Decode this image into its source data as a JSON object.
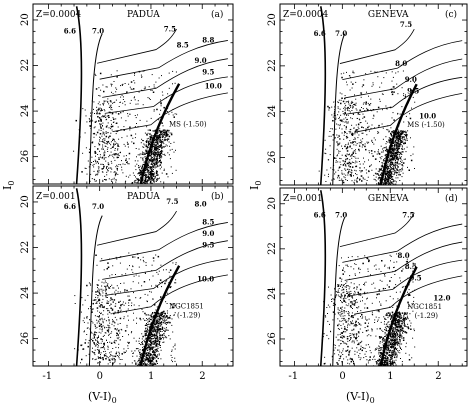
{
  "figure": {
    "ylabel": "I",
    "ylabel_sub": "0",
    "xlabel": "(V-I)",
    "xlabel_sub": "0"
  },
  "chart_data": [
    {
      "type": "scatter",
      "panel": "a",
      "panel_label": "(a)",
      "title_z": "Z=0.0004",
      "title_model": "PADUA",
      "xlim": [
        -1.3,
        2.6
      ],
      "ylim": [
        27.2,
        19.3
      ],
      "xticks": [
        "-1",
        "0",
        "1",
        "2"
      ],
      "yticks": [
        "20",
        "22",
        "24",
        "26"
      ],
      "show_xtick_labels": false,
      "show_ytick_labels": true,
      "isochrone_labels": [
        {
          "text": "6.6",
          "x": -0.7,
          "y": 20.6
        },
        {
          "text": "7.0",
          "x": -0.15,
          "y": 20.6
        },
        {
          "text": "7.5",
          "x": 1.25,
          "y": 20.5
        },
        {
          "text": "8.5",
          "x": 1.5,
          "y": 21.2
        },
        {
          "text": "8.8",
          "x": 2.0,
          "y": 21.0
        },
        {
          "text": "9.0",
          "x": 1.85,
          "y": 21.9
        },
        {
          "text": "9.5",
          "x": 2.0,
          "y": 22.4
        },
        {
          "text": "10.0",
          "x": 2.05,
          "y": 23.0
        }
      ],
      "annotation": "MS (-1.50)",
      "annotation2": ""
    },
    {
      "type": "scatter",
      "panel": "b",
      "panel_label": "(b)",
      "title_z": "Z=0.001",
      "title_model": "PADUA",
      "xlim": [
        -1.3,
        2.6
      ],
      "ylim": [
        27.2,
        19.3
      ],
      "xticks": [
        "-1",
        "0",
        "1",
        "2"
      ],
      "yticks": [
        "20",
        "22",
        "24",
        "26"
      ],
      "show_xtick_labels": true,
      "show_ytick_labels": true,
      "isochrone_labels": [
        {
          "text": "6.6",
          "x": -0.7,
          "y": 20.3
        },
        {
          "text": "7.0",
          "x": -0.15,
          "y": 20.3
        },
        {
          "text": "7.5",
          "x": 1.3,
          "y": 20.1
        },
        {
          "text": "8.0",
          "x": 1.85,
          "y": 20.2
        },
        {
          "text": "8.5",
          "x": 2.0,
          "y": 21.0
        },
        {
          "text": "9.0",
          "x": 2.0,
          "y": 21.5
        },
        {
          "text": "9.5",
          "x": 2.0,
          "y": 22.0
        },
        {
          "text": "10.0",
          "x": 1.9,
          "y": 23.5
        }
      ],
      "annotation": "NGC1851",
      "annotation2": "(-1.29)"
    },
    {
      "type": "scatter",
      "panel": "c",
      "panel_label": "(c)",
      "title_z": "Z=0.0004",
      "title_model": "GENEVA",
      "xlim": [
        -1.3,
        2.6
      ],
      "ylim": [
        27.2,
        19.3
      ],
      "xticks": [
        "-1",
        "0",
        "1",
        "2"
      ],
      "yticks": [
        "20",
        "22",
        "24",
        "26"
      ],
      "show_xtick_labels": false,
      "show_ytick_labels": true,
      "isochrone_labels": [
        {
          "text": "6.6",
          "x": -0.6,
          "y": 20.7
        },
        {
          "text": "7.0",
          "x": -0.15,
          "y": 20.7
        },
        {
          "text": "7.5",
          "x": 1.2,
          "y": 20.3
        },
        {
          "text": "8.0",
          "x": 1.1,
          "y": 22.0
        },
        {
          "text": "9.0",
          "x": 1.3,
          "y": 22.7
        },
        {
          "text": "9.5",
          "x": 1.35,
          "y": 23.2
        },
        {
          "text": "10.0",
          "x": 1.6,
          "y": 24.3
        }
      ],
      "annotation": "MS (-1.50)",
      "annotation2": ""
    },
    {
      "type": "scatter",
      "panel": "d",
      "panel_label": "(d)",
      "title_z": "Z=0.001",
      "title_model": "GENEVA",
      "xlim": [
        -1.3,
        2.6
      ],
      "ylim": [
        27.2,
        19.3
      ],
      "xticks": [
        "-1",
        "0",
        "1",
        "2"
      ],
      "yticks": [
        "20",
        "22",
        "24",
        "26"
      ],
      "show_xtick_labels": true,
      "show_ytick_labels": true,
      "isochrone_labels": [
        {
          "text": "6.6",
          "x": -0.6,
          "y": 20.6
        },
        {
          "text": "7.0",
          "x": -0.15,
          "y": 20.6
        },
        {
          "text": "7.5",
          "x": 1.25,
          "y": 20.6
        },
        {
          "text": "8.0",
          "x": 1.15,
          "y": 22.4
        },
        {
          "text": "8.5",
          "x": 1.3,
          "y": 22.9
        },
        {
          "text": "9.5",
          "x": 1.4,
          "y": 23.4
        },
        {
          "text": "12.0",
          "x": 1.9,
          "y": 24.3
        }
      ],
      "annotation": "NGC1851",
      "annotation2": "(-1.29)"
    }
  ]
}
